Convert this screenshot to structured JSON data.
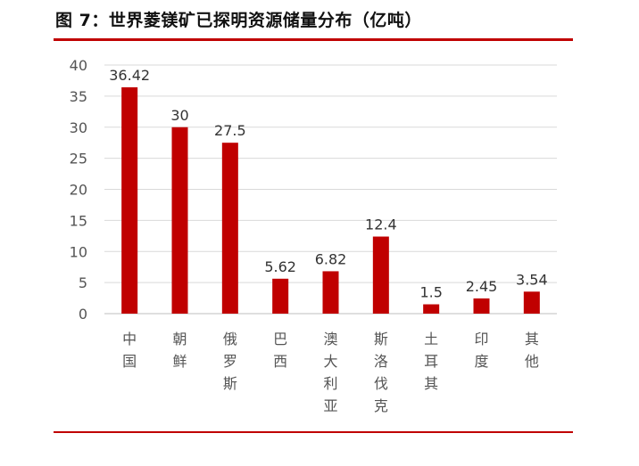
{
  "figure": {
    "title": "图 7：世界菱镁矿已探明资源储量分布（亿吨）",
    "accent_color": "#c00000",
    "bar_color": "#c00000"
  },
  "chart_data": {
    "type": "bar",
    "title": "图 7：世界菱镁矿已探明资源储量分布（亿吨）",
    "categories": [
      "中国",
      "朝鲜",
      "俄罗斯",
      "巴西",
      "澳大利亚",
      "斯洛伐克",
      "土耳其",
      "印度",
      "其他"
    ],
    "values": [
      36.42,
      30,
      27.5,
      5.62,
      6.82,
      12.4,
      1.5,
      2.45,
      3.54
    ],
    "value_labels": [
      "36.42",
      "30",
      "27.5",
      "5.62",
      "6.82",
      "12.4",
      "1.5",
      "2.45",
      "3.54"
    ],
    "xlabel": "",
    "ylabel": "",
    "ylim": [
      0,
      40
    ],
    "yticks": [
      0,
      5,
      10,
      15,
      20,
      25,
      30,
      35,
      40
    ],
    "grid": true,
    "legend": "none"
  }
}
